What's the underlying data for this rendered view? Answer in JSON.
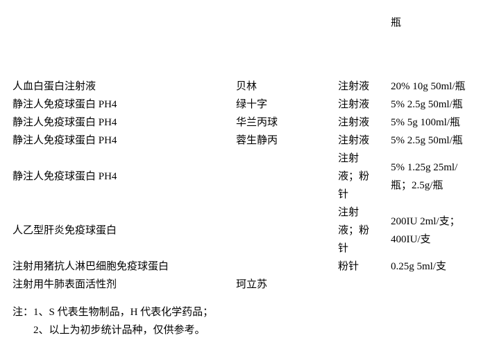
{
  "colors": {
    "text": "#000000",
    "background": "#ffffff"
  },
  "document": {
    "continued_fragment": {
      "spec": "瓶"
    },
    "table": {
      "rows": [
        {
          "name": "人血白蛋白注射液",
          "brand": "贝林",
          "form_lines": [
            "注射液"
          ],
          "spec_lines": [
            "20% 10g 50ml/瓶"
          ]
        },
        {
          "name": "静注人免疫球蛋白 PH4",
          "brand": "绿十字",
          "form_lines": [
            "注射液"
          ],
          "spec_lines": [
            "5% 2.5g 50ml/瓶"
          ]
        },
        {
          "name": "静注人免疫球蛋白 PH4",
          "brand": "华兰丙球",
          "form_lines": [
            "注射液"
          ],
          "spec_lines": [
            "5% 5g 100ml/瓶"
          ]
        },
        {
          "name": "静注人免疫球蛋白 PH4",
          "brand": "蓉生静丙",
          "form_lines": [
            "注射液"
          ],
          "spec_lines": [
            "5% 2.5g 50ml/瓶"
          ]
        },
        {
          "name": "静注人免疫球蛋白 PH4",
          "brand": "",
          "form_lines": [
            "注射",
            "液；粉",
            "针"
          ],
          "spec_lines": [
            "5% 1.25g 25ml/",
            "瓶；2.5g/瓶"
          ]
        },
        {
          "name": "人乙型肝炎免疫球蛋白",
          "brand": "",
          "form_lines": [
            "注射",
            "液；粉",
            "针"
          ],
          "spec_lines": [
            "200IU 2ml/支；",
            "400IU/支"
          ]
        },
        {
          "name": "注射用猪抗人淋巴细胞免疫球蛋白",
          "brand": "",
          "form_lines": [
            "粉针"
          ],
          "spec_lines": [
            "0.25g 5ml/支"
          ]
        },
        {
          "name": "注射用牛肺表面活性剂",
          "brand": "珂立苏",
          "form_lines": [],
          "spec_lines": []
        }
      ]
    },
    "notes": {
      "line1": "注：1、S 代表生物制品，H 代表化学药品；",
      "line2": "2、以上为初步统计品种，仅供参考。"
    }
  }
}
